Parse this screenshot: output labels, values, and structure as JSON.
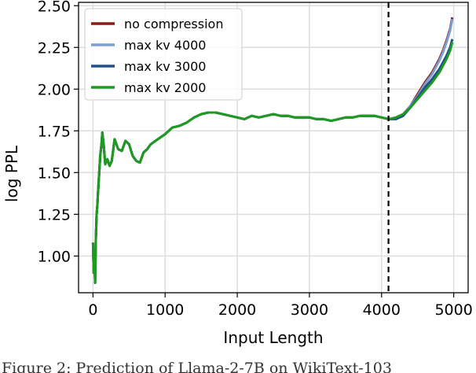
{
  "chart_data": {
    "type": "line",
    "xlabel": "Input Length",
    "ylabel": "log PPL",
    "xlim": [
      -200,
      5200
    ],
    "ylim": [
      0.78,
      2.52
    ],
    "xticks": [
      0,
      1000,
      2000,
      3000,
      4000,
      5000
    ],
    "yticks": [
      1.0,
      1.25,
      1.5,
      1.75,
      2.0,
      2.25,
      2.5
    ],
    "xtick_labels": [
      "0",
      "1000",
      "2000",
      "3000",
      "4000",
      "5000"
    ],
    "ytick_labels": [
      "1.00",
      "1.25",
      "1.50",
      "1.75",
      "2.00",
      "2.25",
      "2.50"
    ],
    "grid": true,
    "legend_position": "top-left",
    "vline": {
      "x": 4096,
      "style": "dashed",
      "color": "#000000"
    },
    "shared": {
      "x": [
        0,
        10,
        20,
        30,
        40,
        50,
        60,
        70,
        80,
        100,
        120,
        130,
        150,
        170,
        200,
        230,
        260,
        300,
        350,
        400,
        450,
        500,
        550,
        600,
        650,
        700,
        750,
        800,
        900,
        1000,
        1100,
        1200,
        1300,
        1400,
        1500,
        1600,
        1700,
        1800,
        1900,
        2000,
        2100,
        2200,
        2300,
        2400,
        2500,
        2600,
        2700,
        2800,
        2900,
        3000,
        3100,
        3200,
        3300,
        3400,
        3500,
        3600,
        3700,
        3800,
        3900,
        4000,
        4100
      ],
      "y": [
        1.08,
        0.9,
        1.0,
        0.84,
        1.1,
        1.25,
        1.3,
        1.38,
        1.45,
        1.6,
        1.68,
        1.74,
        1.66,
        1.55,
        1.58,
        1.54,
        1.57,
        1.7,
        1.64,
        1.63,
        1.69,
        1.67,
        1.6,
        1.57,
        1.56,
        1.62,
        1.64,
        1.67,
        1.7,
        1.73,
        1.77,
        1.78,
        1.8,
        1.83,
        1.85,
        1.86,
        1.86,
        1.85,
        1.84,
        1.83,
        1.82,
        1.84,
        1.83,
        1.84,
        1.85,
        1.84,
        1.84,
        1.83,
        1.83,
        1.83,
        1.82,
        1.82,
        1.81,
        1.82,
        1.83,
        1.83,
        1.84,
        1.84,
        1.84,
        1.83,
        1.82
      ]
    },
    "series": [
      {
        "name": "no compression",
        "color": "#8b1a1a",
        "x": [
          4100,
          4200,
          4300,
          4400,
          4500,
          4600,
          4700,
          4800,
          4850,
          4900,
          4950,
          4980
        ],
        "y": [
          1.82,
          1.83,
          1.85,
          1.9,
          1.97,
          2.04,
          2.1,
          2.18,
          2.23,
          2.29,
          2.36,
          2.43
        ]
      },
      {
        "name": "max kv 4000",
        "color": "#7b9fcf",
        "x": [
          4100,
          4200,
          4300,
          4400,
          4500,
          4600,
          4700,
          4800,
          4850,
          4900,
          4950,
          4980
        ],
        "y": [
          1.82,
          1.83,
          1.85,
          1.9,
          1.96,
          2.03,
          2.09,
          2.17,
          2.22,
          2.28,
          2.35,
          2.42
        ]
      },
      {
        "name": "max kv 3000",
        "color": "#1f4e8c",
        "x": [
          4100,
          4200,
          4300,
          4400,
          4500,
          4600,
          4700,
          4800,
          4850,
          4900,
          4950,
          4980
        ],
        "y": [
          1.81,
          1.82,
          1.84,
          1.89,
          1.95,
          2.01,
          2.06,
          2.12,
          2.16,
          2.2,
          2.25,
          2.3
        ]
      },
      {
        "name": "max kv 2000",
        "color": "#1e9b1e",
        "x": [
          4100,
          4200,
          4300,
          4400,
          4500,
          4600,
          4700,
          4800,
          4850,
          4900,
          4950,
          4980
        ],
        "y": [
          1.82,
          1.83,
          1.85,
          1.89,
          1.94,
          1.99,
          2.04,
          2.1,
          2.14,
          2.18,
          2.23,
          2.28
        ]
      }
    ]
  },
  "caption": "Figure 2: Prediction of Llama-2-7B on WikiText-103"
}
